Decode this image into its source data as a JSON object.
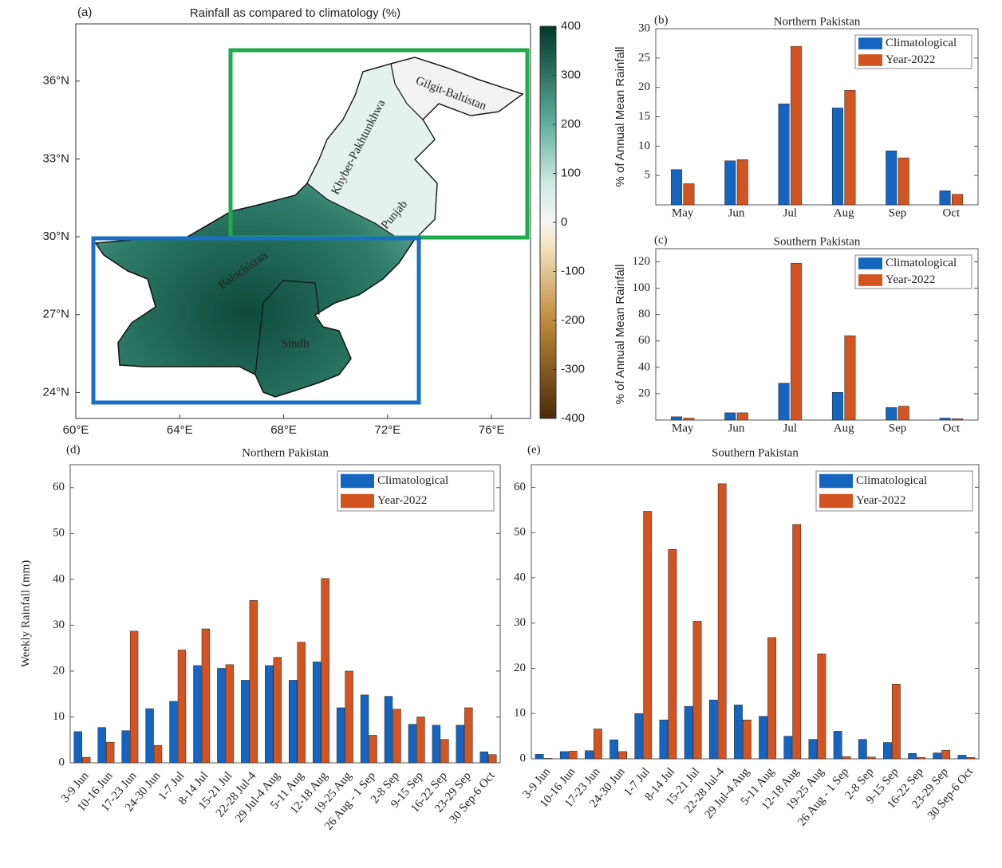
{
  "chart_data": [
    {
      "type": "map",
      "panel_label": "(a)",
      "title": "Rainfall as compared to climatology (%)",
      "xlim": [
        60,
        77.5
      ],
      "ylim": [
        23,
        38.2
      ],
      "xticks": [
        {
          "value": 60,
          "label": "60°E"
        },
        {
          "value": 64,
          "label": "64°E"
        },
        {
          "value": 68,
          "label": "68°E"
        },
        {
          "value": 72,
          "label": "72°E"
        },
        {
          "value": 76,
          "label": "76°E"
        }
      ],
      "yticks": [
        {
          "value": 24,
          "label": "24°N"
        },
        {
          "value": 27,
          "label": "27°N"
        },
        {
          "value": 30,
          "label": "30°N"
        },
        {
          "value": 33,
          "label": "33°N"
        },
        {
          "value": 36,
          "label": "36°N"
        }
      ],
      "clim": [
        -400,
        400
      ],
      "cticks": [
        -400,
        -300,
        -200,
        -100,
        0,
        100,
        200,
        300,
        400
      ],
      "regions": [
        "Gilgit-Baltistan",
        "Khyber-Pakhtunkhwa",
        "Punjab",
        "Balochistan",
        "Sindh"
      ]
    },
    {
      "type": "bar",
      "panel_label": "(b)",
      "title": "Northern Pakistan",
      "ylabel": "% of Annual Mean Rainfall",
      "categories": [
        "May",
        "Jun",
        "Jul",
        "Aug",
        "Sep",
        "Oct"
      ],
      "series": [
        {
          "name": "Climatological",
          "color": "#1565c0",
          "values": [
            6,
            7.5,
            17.2,
            16.5,
            9.2,
            2.4
          ]
        },
        {
          "name": "Year-2022",
          "color": "#d35420",
          "values": [
            3.6,
            7.7,
            27,
            19.5,
            8,
            1.8
          ]
        }
      ],
      "ylim": [
        0,
        30
      ],
      "yticks": [
        5,
        10,
        15,
        20,
        25,
        30
      ],
      "legend": "upper right",
      "grid": false
    },
    {
      "type": "bar",
      "panel_label": "(c)",
      "title": "Southern Pakistan",
      "ylabel": "% of Annual Mean Rainfall",
      "categories": [
        "May",
        "Jun",
        "Jul",
        "Aug",
        "Sep",
        "Oct"
      ],
      "series": [
        {
          "name": "Climatological",
          "color": "#1565c0",
          "values": [
            2.5,
            5.5,
            28,
            21,
            9.5,
            1.5
          ]
        },
        {
          "name": "Year-2022",
          "color": "#d35420",
          "values": [
            1.5,
            5.5,
            119,
            64,
            10.5,
            1
          ]
        }
      ],
      "ylim": [
        0,
        130
      ],
      "yticks": [
        20,
        40,
        60,
        80,
        100,
        120
      ],
      "legend": "upper right",
      "grid": false
    },
    {
      "type": "bar",
      "panel_label": "(d)",
      "title": "Northern Pakistan",
      "ylabel": "Weekly Rainfall (mm)",
      "categories": [
        "3-9 Jun",
        "10-16 Jun",
        "17-23 Jun",
        "24-30 Jun",
        "1-7 Jul",
        "8-14 Jul",
        "15-21 Jul",
        "22-28 Jul-4",
        "29 Jul-4 Aug",
        "5-11 Aug",
        "12-18 Aug",
        "19-25 Aug",
        "26 Aug - 1 Sep",
        "2-8 Sep",
        "9-15 Sep",
        "16-22 Sep",
        "23-29 Sep",
        "30 Sep-6 Oct"
      ],
      "series": [
        {
          "name": "Climatological",
          "color": "#1565c0",
          "values": [
            6.8,
            7.7,
            7,
            11.8,
            13.4,
            21.2,
            20.6,
            18,
            21.2,
            18,
            22,
            12,
            14.8,
            14.5,
            8.4,
            8.2,
            8.2,
            2.4
          ]
        },
        {
          "name": "Year-2022",
          "color": "#d35420",
          "values": [
            1.2,
            4.5,
            28.7,
            3.8,
            24.6,
            29.2,
            21.4,
            35.4,
            23,
            26.3,
            40.2,
            20,
            6,
            11.7,
            10,
            5.1,
            12,
            1.8
          ]
        }
      ],
      "ylim": [
        0,
        65
      ],
      "yticks": [
        0,
        10,
        20,
        30,
        40,
        50,
        60
      ],
      "legend": "upper right",
      "grid": false
    },
    {
      "type": "bar",
      "panel_label": "(e)",
      "title": "Southern Pakistan",
      "categories": [
        "3-9 Jun",
        "10-16 Jun",
        "17-23 Jun",
        "24-30 Jun",
        "1-7 Jul",
        "8-14 Jul",
        "15-21 Jul",
        "22-28 Jul-4",
        "29 Jul-4 Aug",
        "5-11 Aug",
        "12-18 Aug",
        "19-25 Aug",
        "26 Aug - 1 Sep",
        "2-8 Sep",
        "9-15 Sep",
        "16-22 Sep",
        "23-29 Sep",
        "30 Sep-6 Oct"
      ],
      "series": [
        {
          "name": "Climatological",
          "color": "#1565c0",
          "values": [
            1,
            1.6,
            1.8,
            4.2,
            10,
            8.6,
            11.6,
            13,
            11.9,
            9.4,
            5,
            4.3,
            6.1,
            4.3,
            3.6,
            1.2,
            1.3,
            0.8
          ]
        },
        {
          "name": "Year-2022",
          "color": "#d35420",
          "values": [
            0.1,
            1.7,
            6.6,
            1.6,
            54.7,
            46.3,
            30.4,
            60.8,
            8.6,
            26.8,
            51.8,
            23.2,
            0.5,
            0.4,
            16.5,
            0.3,
            1.9,
            0.3
          ]
        }
      ],
      "ylim": [
        0,
        65
      ],
      "yticks": [
        0,
        10,
        20,
        30,
        40,
        50,
        60
      ],
      "legend": "upper right",
      "grid": false
    }
  ]
}
